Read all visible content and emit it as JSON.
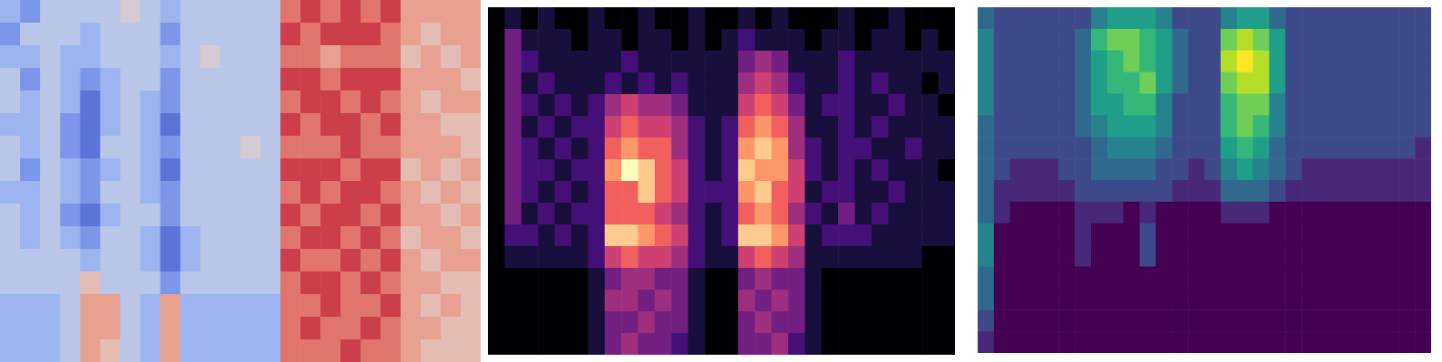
{
  "chart_data": [
    {
      "type": "heatmap",
      "color": "coolwarm",
      "color_range": [
        -5,
        5
      ],
      "tick_labels": false,
      "cells": [
        [
          -2,
          -3,
          -1,
          -1,
          -1,
          -1,
          0,
          -1,
          -2,
          -1,
          -1,
          -1,
          -1,
          -1,
          3,
          4,
          3,
          4,
          3,
          4,
          2,
          2,
          2,
          2
        ],
        [
          -3,
          -1,
          -1,
          -1,
          -2,
          -1,
          -1,
          -1,
          -3,
          -1,
          -1,
          -1,
          -1,
          -1,
          4,
          3,
          4,
          4,
          4,
          3,
          2,
          1,
          2,
          2
        ],
        [
          -2,
          -2,
          -1,
          -2,
          -2,
          -1,
          -1,
          -1,
          -2,
          -1,
          0,
          -1,
          -1,
          -1,
          3,
          3,
          2,
          3,
          3,
          3,
          1,
          2,
          1,
          2
        ],
        [
          -1,
          -3,
          -1,
          -2,
          -3,
          -2,
          -1,
          -1,
          -3,
          -1,
          -1,
          -1,
          -1,
          -1,
          4,
          4,
          3,
          4,
          4,
          4,
          2,
          2,
          2,
          1
        ],
        [
          -1,
          -2,
          -1,
          -2,
          -4,
          -2,
          -1,
          -2,
          -3,
          -1,
          -1,
          -1,
          -1,
          -1,
          3,
          4,
          4,
          3,
          4,
          3,
          2,
          1,
          2,
          2
        ],
        [
          -2,
          -2,
          -1,
          -3,
          -4,
          -2,
          -1,
          -2,
          -4,
          -1,
          -1,
          -1,
          -1,
          -1,
          4,
          3,
          4,
          4,
          3,
          4,
          2,
          2,
          1,
          1
        ],
        [
          -1,
          -2,
          -1,
          -3,
          -4,
          -1,
          -1,
          -2,
          -3,
          -1,
          -1,
          -1,
          0,
          -1,
          3,
          3,
          3,
          4,
          3,
          3,
          2,
          2,
          2,
          1
        ],
        [
          -1,
          -3,
          -1,
          -2,
          -3,
          -2,
          -1,
          -2,
          -4,
          -1,
          -1,
          -1,
          -1,
          -1,
          4,
          4,
          4,
          3,
          4,
          4,
          1,
          2,
          1,
          2
        ],
        [
          -2,
          -2,
          -1,
          -2,
          -3,
          -1,
          -1,
          -2,
          -3,
          -1,
          -1,
          -1,
          -1,
          -1,
          3,
          4,
          3,
          4,
          4,
          3,
          2,
          1,
          2,
          1
        ],
        [
          -1,
          -2,
          -1,
          -3,
          -4,
          -2,
          -1,
          -1,
          -3,
          -1,
          -1,
          -1,
          -1,
          -1,
          4,
          3,
          4,
          4,
          3,
          4,
          2,
          2,
          1,
          2
        ],
        [
          -1,
          -2,
          -1,
          -2,
          -3,
          -1,
          -1,
          -2,
          -4,
          -2,
          -1,
          -1,
          -1,
          -1,
          3,
          4,
          4,
          3,
          4,
          3,
          1,
          2,
          2,
          1
        ],
        [
          -1,
          -1,
          -1,
          -1,
          -2,
          -1,
          -1,
          -2,
          -4,
          -2,
          -1,
          -1,
          -1,
          -1,
          4,
          3,
          3,
          4,
          3,
          4,
          2,
          1,
          2,
          2
        ],
        [
          -1,
          -1,
          -1,
          -1,
          1,
          -1,
          -1,
          -1,
          -3,
          -1,
          -1,
          -1,
          -1,
          -1,
          3,
          4,
          4,
          3,
          4,
          3,
          2,
          2,
          1,
          1
        ],
        [
          -2,
          -2,
          -2,
          -1,
          2,
          2,
          -1,
          -2,
          2,
          -2,
          -2,
          -2,
          -2,
          -2,
          3,
          3,
          4,
          3,
          3,
          4,
          2,
          1,
          2,
          1
        ],
        [
          -2,
          -2,
          -2,
          -1,
          2,
          2,
          -1,
          -2,
          2,
          -2,
          -2,
          -2,
          -2,
          -2,
          3,
          4,
          3,
          3,
          4,
          3,
          2,
          2,
          1,
          1
        ],
        [
          -2,
          -2,
          -2,
          -1,
          2,
          1,
          -1,
          -2,
          2,
          -2,
          -2,
          -2,
          -2,
          -2,
          3,
          3,
          3,
          4,
          3,
          3,
          2,
          1,
          1,
          1
        ]
      ]
    },
    {
      "type": "heatmap",
      "color": "magma",
      "color_range": [
        0,
        9
      ],
      "tick_labels": false,
      "cells": [
        [
          0,
          1,
          0,
          1,
          0,
          0,
          1,
          0,
          0,
          1,
          0,
          0,
          1,
          0,
          0,
          1,
          0,
          1,
          0,
          0,
          0,
          1,
          0,
          0,
          1,
          0,
          0,
          0
        ],
        [
          0,
          3,
          1,
          1,
          1,
          0,
          1,
          1,
          0,
          1,
          1,
          0,
          1,
          0,
          1,
          2,
          1,
          1,
          1,
          0,
          1,
          1,
          0,
          1,
          1,
          0,
          1,
          0
        ],
        [
          0,
          3,
          2,
          1,
          1,
          1,
          1,
          1,
          2,
          1,
          1,
          1,
          1,
          1,
          1,
          3,
          4,
          3,
          1,
          1,
          1,
          2,
          1,
          1,
          1,
          1,
          1,
          1
        ],
        [
          0,
          3,
          1,
          2,
          1,
          1,
          1,
          2,
          1,
          2,
          1,
          2,
          1,
          1,
          1,
          4,
          5,
          4,
          2,
          1,
          1,
          2,
          1,
          2,
          1,
          1,
          0,
          1
        ],
        [
          0,
          3,
          2,
          1,
          2,
          1,
          2,
          4,
          5,
          4,
          4,
          3,
          1,
          1,
          1,
          5,
          6,
          5,
          3,
          1,
          2,
          2,
          1,
          1,
          2,
          1,
          1,
          0
        ],
        [
          0,
          3,
          1,
          2,
          1,
          2,
          2,
          5,
          6,
          5,
          5,
          4,
          2,
          1,
          2,
          6,
          7,
          6,
          4,
          1,
          1,
          2,
          1,
          2,
          1,
          1,
          1,
          1
        ],
        [
          0,
          3,
          2,
          1,
          2,
          1,
          2,
          6,
          7,
          6,
          6,
          4,
          2,
          1,
          2,
          7,
          8,
          7,
          4,
          2,
          1,
          2,
          2,
          1,
          1,
          2,
          1,
          1
        ],
        [
          0,
          3,
          2,
          2,
          1,
          2,
          2,
          7,
          9,
          8,
          6,
          5,
          2,
          1,
          2,
          8,
          7,
          7,
          5,
          2,
          1,
          2,
          1,
          2,
          1,
          1,
          1,
          0
        ],
        [
          0,
          3,
          2,
          1,
          2,
          1,
          2,
          6,
          6,
          8,
          6,
          5,
          2,
          2,
          2,
          7,
          8,
          6,
          5,
          1,
          2,
          2,
          1,
          1,
          2,
          1,
          1,
          1
        ],
        [
          0,
          3,
          1,
          2,
          1,
          2,
          2,
          6,
          6,
          6,
          5,
          4,
          2,
          1,
          2,
          6,
          7,
          6,
          4,
          2,
          1,
          3,
          1,
          2,
          1,
          1,
          1,
          1
        ],
        [
          0,
          2,
          2,
          1,
          2,
          1,
          2,
          8,
          8,
          7,
          6,
          5,
          2,
          1,
          2,
          8,
          8,
          7,
          5,
          1,
          2,
          2,
          2,
          1,
          1,
          1,
          1,
          1
        ],
        [
          0,
          1,
          1,
          1,
          1,
          1,
          2,
          5,
          6,
          5,
          5,
          4,
          2,
          1,
          1,
          5,
          6,
          5,
          4,
          1,
          1,
          1,
          1,
          1,
          1,
          1,
          0,
          0
        ],
        [
          0,
          0,
          0,
          0,
          0,
          0,
          1,
          3,
          4,
          4,
          3,
          3,
          1,
          0,
          0,
          3,
          4,
          3,
          3,
          1,
          0,
          0,
          0,
          0,
          0,
          0,
          0,
          0
        ],
        [
          0,
          0,
          0,
          0,
          0,
          0,
          1,
          4,
          4,
          3,
          4,
          3,
          1,
          0,
          0,
          4,
          3,
          4,
          3,
          1,
          0,
          0,
          0,
          0,
          0,
          0,
          0,
          0
        ],
        [
          0,
          0,
          0,
          0,
          0,
          0,
          1,
          3,
          3,
          4,
          3,
          3,
          1,
          0,
          0,
          3,
          4,
          3,
          3,
          1,
          0,
          0,
          0,
          0,
          0,
          0,
          0,
          0
        ],
        [
          0,
          0,
          0,
          0,
          0,
          0,
          1,
          3,
          4,
          3,
          3,
          2,
          1,
          0,
          0,
          3,
          3,
          4,
          2,
          1,
          0,
          0,
          0,
          0,
          0,
          0,
          0,
          0
        ]
      ]
    },
    {
      "type": "heatmap",
      "color": "viridis",
      "color_range": [
        0,
        9
      ],
      "tick_labels": false,
      "cells": [
        [
          3,
          2,
          2,
          2,
          2,
          2,
          2,
          4,
          5,
          5,
          5,
          4,
          2,
          2,
          2,
          4,
          5,
          5,
          3,
          2,
          2,
          2,
          2,
          2,
          2,
          2,
          2,
          2
        ],
        [
          4,
          2,
          2,
          2,
          2,
          2,
          3,
          6,
          7,
          7,
          6,
          5,
          3,
          2,
          2,
          7,
          8,
          7,
          5,
          2,
          2,
          2,
          2,
          2,
          2,
          2,
          2,
          2
        ],
        [
          4,
          2,
          2,
          2,
          2,
          2,
          3,
          5,
          6,
          7,
          6,
          5,
          3,
          2,
          2,
          8,
          9,
          8,
          5,
          2,
          2,
          2,
          2,
          2,
          2,
          2,
          2,
          2
        ],
        [
          4,
          2,
          2,
          2,
          2,
          2,
          3,
          5,
          6,
          6,
          7,
          5,
          3,
          2,
          2,
          7,
          8,
          8,
          5,
          2,
          2,
          2,
          2,
          2,
          2,
          2,
          2,
          2
        ],
        [
          4,
          2,
          2,
          2,
          2,
          2,
          3,
          5,
          5,
          6,
          6,
          4,
          2,
          2,
          2,
          6,
          7,
          7,
          4,
          2,
          2,
          2,
          2,
          2,
          2,
          2,
          2,
          2
        ],
        [
          3,
          2,
          2,
          2,
          2,
          2,
          3,
          4,
          5,
          5,
          5,
          4,
          2,
          2,
          2,
          6,
          7,
          6,
          4,
          2,
          2,
          2,
          2,
          2,
          2,
          2,
          2,
          2
        ],
        [
          3,
          2,
          2,
          2,
          2,
          2,
          2,
          3,
          4,
          4,
          4,
          3,
          2,
          2,
          2,
          5,
          6,
          5,
          3,
          2,
          2,
          2,
          2,
          2,
          2,
          2,
          2,
          1
        ],
        [
          3,
          2,
          1,
          1,
          1,
          2,
          2,
          3,
          3,
          3,
          3,
          2,
          2,
          1,
          2,
          4,
          5,
          4,
          3,
          2,
          1,
          1,
          1,
          1,
          1,
          1,
          1,
          1
        ],
        [
          3,
          1,
          1,
          1,
          1,
          1,
          2,
          2,
          2,
          2,
          2,
          2,
          1,
          1,
          1,
          3,
          3,
          3,
          2,
          1,
          1,
          1,
          1,
          1,
          1,
          1,
          1,
          1
        ],
        [
          3,
          1,
          0,
          0,
          0,
          0,
          1,
          1,
          1,
          0,
          1,
          0,
          0,
          0,
          0,
          1,
          1,
          1,
          0,
          0,
          0,
          0,
          0,
          0,
          0,
          0,
          0,
          0
        ],
        [
          4,
          0,
          0,
          0,
          0,
          0,
          1,
          0,
          0,
          0,
          2,
          0,
          0,
          0,
          0,
          0,
          0,
          0,
          0,
          0,
          0,
          0,
          0,
          0,
          0,
          0,
          0,
          0
        ],
        [
          4,
          0,
          0,
          0,
          0,
          0,
          1,
          0,
          0,
          0,
          2,
          0,
          0,
          0,
          0,
          0,
          0,
          0,
          0,
          0,
          0,
          0,
          0,
          0,
          0,
          0,
          0,
          0
        ],
        [
          3,
          0,
          0,
          0,
          0,
          0,
          0,
          0,
          0,
          0,
          0,
          0,
          0,
          0,
          0,
          0,
          0,
          0,
          0,
          0,
          0,
          0,
          0,
          0,
          0,
          0,
          0,
          0
        ],
        [
          3,
          0,
          0,
          0,
          0,
          0,
          0,
          0,
          0,
          0,
          0,
          0,
          0,
          0,
          0,
          0,
          0,
          0,
          0,
          0,
          0,
          0,
          0,
          0,
          0,
          0,
          0,
          0
        ],
        [
          2,
          0,
          0,
          0,
          0,
          0,
          0,
          0,
          0,
          0,
          0,
          0,
          0,
          0,
          0,
          0,
          0,
          0,
          0,
          0,
          0,
          0,
          0,
          0,
          0,
          0,
          0,
          0
        ],
        [
          1,
          0,
          0,
          0,
          0,
          0,
          0,
          0,
          0,
          0,
          0,
          0,
          0,
          0,
          0,
          0,
          0,
          0,
          0,
          0,
          0,
          0,
          0,
          0,
          0,
          0,
          0,
          0
        ]
      ]
    }
  ]
}
